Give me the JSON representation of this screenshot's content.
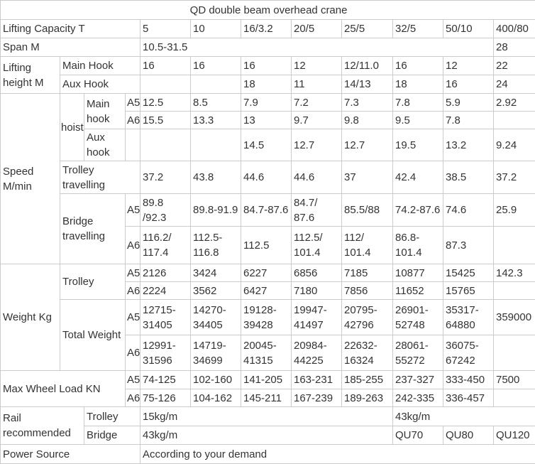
{
  "title": "QD double beam overhead crane",
  "colors": {
    "text": "#333333",
    "border": "#cbcbcb",
    "background": "#ffffff"
  },
  "grid": {
    "rows": [
      {
        "cells": [
          {
            "t": "QD double beam overhead crane",
            "cs": 12,
            "n": "table-title",
            "cls": "center"
          }
        ]
      },
      {
        "cells": [
          {
            "t": "Lifting Capacity  T",
            "cs": 4,
            "n": "row-label-lifting-capacity"
          },
          {
            "t": "5"
          },
          {
            "t": "10"
          },
          {
            "t": "16/3.2"
          },
          {
            "t": "20/5"
          },
          {
            "t": "25/5"
          },
          {
            "t": "32/5"
          },
          {
            "t": "50/10"
          },
          {
            "t": "400/80"
          }
        ]
      },
      {
        "cells": [
          {
            "t": "Span  M",
            "cs": 4,
            "n": "row-label-span"
          },
          {
            "t": "10.5-31.5",
            "cs": 7
          },
          {
            "t": "28"
          }
        ]
      },
      {
        "cells": [
          {
            "t": "Lifting height M",
            "rs": 2,
            "n": "row-label-lifting-height"
          },
          {
            "t": "Main Hook",
            "cs": 3,
            "n": "row-label-main-hook"
          },
          {
            "t": "16"
          },
          {
            "t": "16"
          },
          {
            "t": "16"
          },
          {
            "t": "12"
          },
          {
            "t": "12/11.0"
          },
          {
            "t": "16"
          },
          {
            "t": "12"
          },
          {
            "t": "22"
          }
        ]
      },
      {
        "cells": [
          {
            "t": "Aux Hook",
            "cs": 3,
            "n": "row-label-aux-hook"
          },
          {
            "t": ""
          },
          {
            "t": ""
          },
          {
            "t": "18"
          },
          {
            "t": "11"
          },
          {
            "t": "14/13"
          },
          {
            "t": "18"
          },
          {
            "t": "16"
          },
          {
            "t": "24"
          }
        ]
      },
      {
        "cells": [
          {
            "t": "Speed M/min",
            "rs": 6,
            "n": "row-label-speed"
          },
          {
            "t": "hoist",
            "rs": 3,
            "n": "row-label-hoist",
            "cls": "p1"
          },
          {
            "t": "Main hook",
            "rs": 2,
            "n": "row-label-hoist-main-hook"
          },
          {
            "t": "A5",
            "n": "grade-label",
            "cls": "grade"
          },
          {
            "t": "12.5"
          },
          {
            "t": "8.5"
          },
          {
            "t": "7.9"
          },
          {
            "t": "7.2"
          },
          {
            "t": "7.3"
          },
          {
            "t": "7.8"
          },
          {
            "t": "5.9"
          },
          {
            "t": "2.92"
          }
        ]
      },
      {
        "cells": [
          {
            "t": "A6",
            "n": "grade-label",
            "cls": "grade"
          },
          {
            "t": "15.5"
          },
          {
            "t": "13.3"
          },
          {
            "t": "13"
          },
          {
            "t": "9.7"
          },
          {
            "t": "9.8"
          },
          {
            "t": "9.5"
          },
          {
            "t": "7.8"
          },
          {
            "t": ""
          }
        ]
      },
      {
        "cells": [
          {
            "t": "Aux hook",
            "n": "row-label-hoist-aux-hook"
          },
          {
            "t": "",
            "cls": "grade"
          },
          {
            "t": ""
          },
          {
            "t": ""
          },
          {
            "t": "14.5"
          },
          {
            "t": "12.7"
          },
          {
            "t": "12.7"
          },
          {
            "t": "19.5"
          },
          {
            "t": "13.2"
          },
          {
            "t": "9.24"
          }
        ]
      },
      {
        "cells": [
          {
            "t": "Trolley travelling",
            "cs": 3,
            "n": "row-label-trolley-travelling"
          },
          {
            "t": "37.2"
          },
          {
            "t": "43.8"
          },
          {
            "t": "44.6"
          },
          {
            "t": "44.6"
          },
          {
            "t": "37"
          },
          {
            "t": "42.4"
          },
          {
            "t": "38.5"
          },
          {
            "t": "37.2"
          }
        ]
      },
      {
        "cells": [
          {
            "t": "Bridge travelling",
            "cs": 2,
            "rs": 2,
            "n": "row-label-bridge-travelling"
          },
          {
            "t": "A5",
            "n": "grade-label",
            "cls": "grade"
          },
          {
            "t": "89.8 /92.3"
          },
          {
            "t": "89.8-91.9"
          },
          {
            "t": "84.7-87.6"
          },
          {
            "t": "84.7/ 87.6"
          },
          {
            "t": "85.5/88"
          },
          {
            "t": "74.2-87.6"
          },
          {
            "t": "74.6"
          },
          {
            "t": "25.9"
          }
        ]
      },
      {
        "cells": [
          {
            "t": "A6",
            "n": "grade-label",
            "cls": "grade"
          },
          {
            "t": "116.2/ 117.4"
          },
          {
            "t": "112.5- 116.8"
          },
          {
            "t": "112.5"
          },
          {
            "t": "112.5/ 101.4"
          },
          {
            "t": "112/ 101.4"
          },
          {
            "t": "86.8- 101.4"
          },
          {
            "t": "87.3"
          },
          {
            "t": ""
          }
        ]
      },
      {
        "cells": [
          {
            "t": "Weight  Kg",
            "rs": 4,
            "n": "row-label-weight"
          },
          {
            "t": "Trolley",
            "cs": 2,
            "rs": 2,
            "n": "row-label-weight-trolley"
          },
          {
            "t": "A5",
            "n": "grade-label",
            "cls": "grade"
          },
          {
            "t": "2126"
          },
          {
            "t": "3424"
          },
          {
            "t": "6227"
          },
          {
            "t": "6856"
          },
          {
            "t": "7185"
          },
          {
            "t": "10877"
          },
          {
            "t": "15425"
          },
          {
            "t": "142.3"
          }
        ]
      },
      {
        "cells": [
          {
            "t": "A6",
            "n": "grade-label",
            "cls": "grade"
          },
          {
            "t": "2224"
          },
          {
            "t": "3562"
          },
          {
            "t": "6427"
          },
          {
            "t": "7180"
          },
          {
            "t": "7856"
          },
          {
            "t": "11652"
          },
          {
            "t": "15765"
          },
          {
            "t": ""
          }
        ]
      },
      {
        "cells": [
          {
            "t": "Total Weight",
            "cs": 2,
            "rs": 2,
            "n": "row-label-total-weight"
          },
          {
            "t": "A5",
            "n": "grade-label",
            "cls": "grade"
          },
          {
            "t": "12715- 31405"
          },
          {
            "t": "14270- 34405"
          },
          {
            "t": "19128- 39428"
          },
          {
            "t": "19947- 41497"
          },
          {
            "t": "20795- 42796"
          },
          {
            "t": "26901- 52748"
          },
          {
            "t": "35317- 64880"
          },
          {
            "t": "359000"
          }
        ]
      },
      {
        "cells": [
          {
            "t": "A6",
            "n": "grade-label",
            "cls": "grade"
          },
          {
            "t": "12991- 31596"
          },
          {
            "t": "14719- 34699"
          },
          {
            "t": "20045- 41315"
          },
          {
            "t": "20984- 44225"
          },
          {
            "t": "22632- 16324"
          },
          {
            "t": "28061- 55272"
          },
          {
            "t": "36075- 67242"
          },
          {
            "t": ""
          }
        ]
      },
      {
        "cells": [
          {
            "t": "Max Wheel Load KN",
            "cs": 3,
            "rs": 2,
            "n": "row-label-max-wheel-load"
          },
          {
            "t": "A5",
            "n": "grade-label",
            "cls": "grade"
          },
          {
            "t": "74-125"
          },
          {
            "t": "102-160"
          },
          {
            "t": "141-205"
          },
          {
            "t": "163-231"
          },
          {
            "t": "185-255"
          },
          {
            "t": "237-327"
          },
          {
            "t": "333-450"
          },
          {
            "t": "7500"
          }
        ]
      },
      {
        "cells": [
          {
            "t": "A6",
            "n": "grade-label",
            "cls": "grade"
          },
          {
            "t": "75-126"
          },
          {
            "t": "104-162"
          },
          {
            "t": "145-211"
          },
          {
            "t": "167-239"
          },
          {
            "t": "189-263"
          },
          {
            "t": "242-335"
          },
          {
            "t": "336-457"
          },
          {
            "t": ""
          }
        ]
      },
      {
        "cells": [
          {
            "t": "Rail recommended",
            "cs": 2,
            "rs": 2,
            "n": "row-label-rail-recommended"
          },
          {
            "t": "Trolley",
            "cs": 2,
            "n": "row-label-rail-trolley"
          },
          {
            "t": "15kg/m",
            "cs": 5
          },
          {
            "t": "43kg/m",
            "cs": 3
          }
        ]
      },
      {
        "cells": [
          {
            "t": "Bridge",
            "cs": 2,
            "n": "row-label-rail-bridge"
          },
          {
            "t": "43kg/m",
            "cs": 5
          },
          {
            "t": "QU70"
          },
          {
            "t": "QU80"
          },
          {
            "t": "QU120"
          }
        ]
      },
      {
        "cells": [
          {
            "t": "Power Source",
            "cs": 4,
            "n": "row-label-power-source"
          },
          {
            "t": "According to your demand",
            "cs": 8
          }
        ]
      }
    ]
  }
}
